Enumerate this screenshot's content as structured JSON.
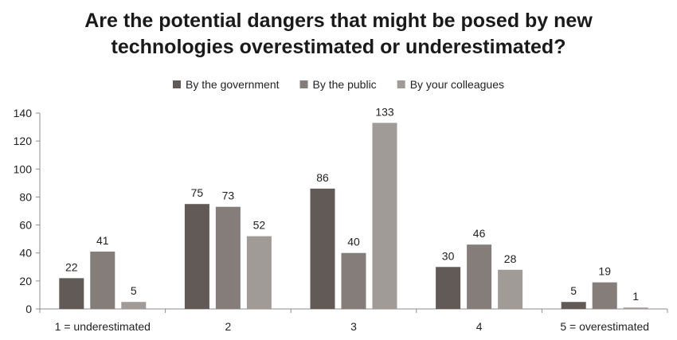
{
  "chart_data": {
    "type": "bar",
    "title_lines": [
      "Are the potential dangers that might be posed by new",
      "technologies overestimated or underestimated?"
    ],
    "categories": [
      "1 = underestimated",
      "2",
      "3",
      "4",
      "5 = overestimated"
    ],
    "series": [
      {
        "name": "By the government",
        "values": [
          22,
          75,
          86,
          30,
          5
        ],
        "color": "#625a56"
      },
      {
        "name": "By the public",
        "values": [
          41,
          73,
          40,
          46,
          19
        ],
        "color": "#847d79"
      },
      {
        "name": "By your colleagues",
        "values": [
          5,
          52,
          133,
          28,
          1
        ],
        "color": "#a19b98"
      }
    ],
    "ylim": [
      0,
      140
    ],
    "yticks": [
      0,
      20,
      40,
      60,
      80,
      100,
      120,
      140
    ],
    "legend_position": "top",
    "grid": false,
    "data_labels": true
  }
}
